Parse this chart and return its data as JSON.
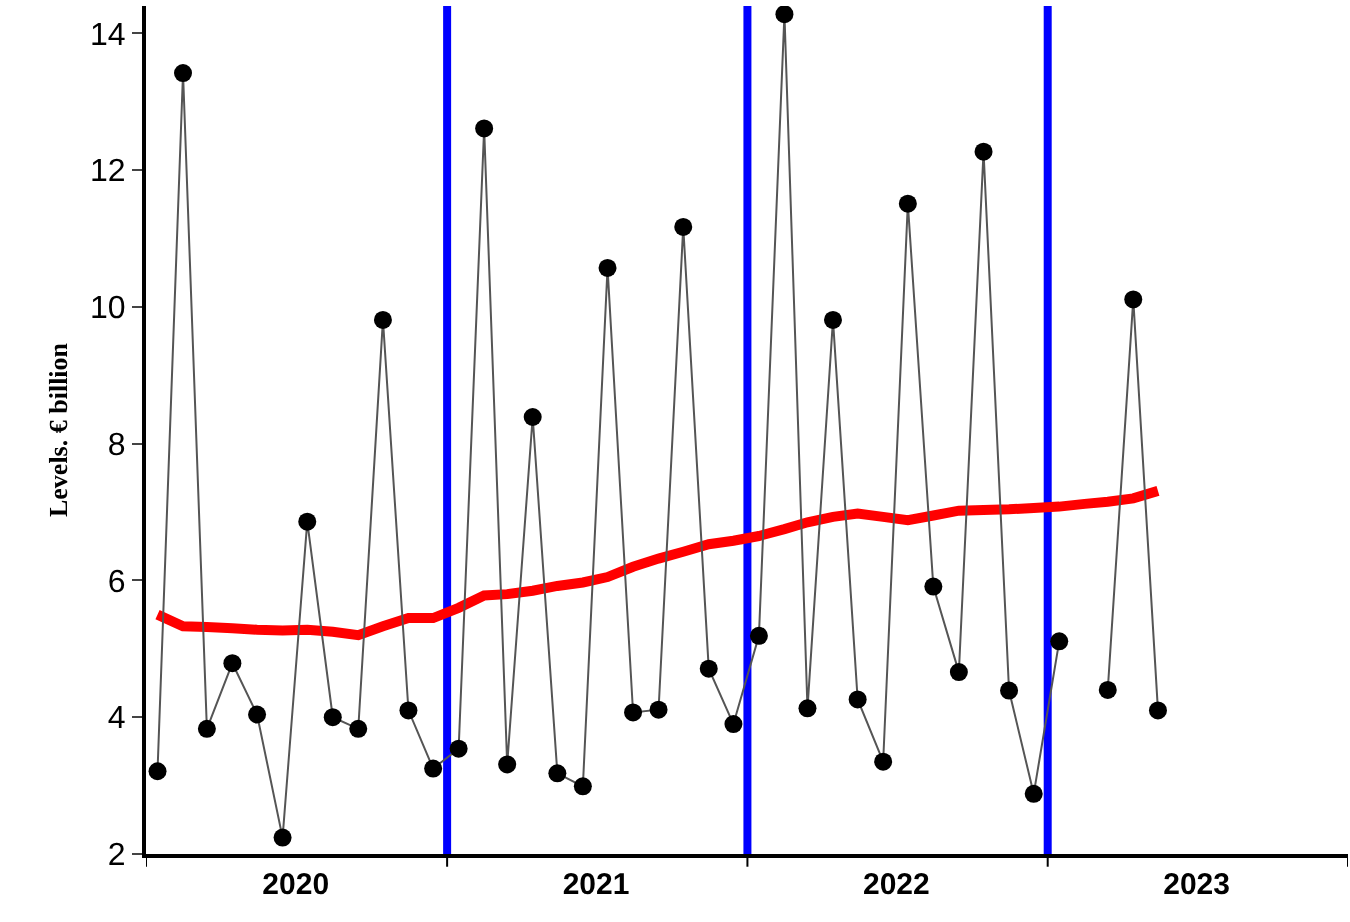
{
  "chart_data": {
    "type": "line",
    "ylabel": "Levels. € billion",
    "x": [
      "2020-01-15",
      "2020-02-15",
      "2020-03-15",
      "2020-04-15",
      "2020-05-15",
      "2020-06-15",
      "2020-07-15",
      "2020-08-15",
      "2020-09-15",
      "2020-10-15",
      "2020-11-15",
      "2020-12-15",
      "2021-01-15",
      "2021-02-15",
      "2021-03-15",
      "2021-04-15",
      "2021-05-15",
      "2021-06-15",
      "2021-07-15",
      "2021-08-15",
      "2021-09-15",
      "2021-10-15",
      "2021-11-15",
      "2021-12-15",
      "2022-01-15",
      "2022-02-15",
      "2022-03-15",
      "2022-04-15",
      "2022-05-15",
      "2022-06-15",
      "2022-07-15",
      "2022-08-15",
      "2022-09-15",
      "2022-10-15",
      "2022-11-15",
      "2022-12-15",
      "2023-01-15",
      "2023-02-15",
      "2023-03-15",
      "2023-04-15",
      "2023-05-15"
    ],
    "series": [
      {
        "color": "#000000",
        "marker": "circle",
        "values": [
          3.21,
          13.42,
          3.83,
          4.79,
          4.04,
          2.24,
          6.86,
          4.0,
          3.83,
          9.81,
          4.1,
          3.25,
          3.54,
          12.61,
          3.31,
          8.39,
          3.18,
          2.99,
          10.57,
          4.07,
          4.11,
          11.17,
          4.71,
          3.9,
          5.19,
          14.28,
          4.13,
          9.81,
          4.26,
          3.35,
          11.51,
          5.91,
          4.66,
          12.27,
          4.39,
          2.88,
          5.11,
          null,
          4.4,
          10.11,
          4.1
        ]
      },
      {
        "color": "#ff0000",
        "marker": "none",
        "values": [
          5.5,
          5.33,
          5.32,
          5.3,
          5.28,
          5.27,
          5.28,
          5.25,
          5.2,
          5.33,
          5.45,
          5.45,
          5.6,
          5.78,
          5.8,
          5.85,
          5.92,
          5.97,
          6.05,
          6.2,
          6.32,
          6.42,
          6.53,
          6.58,
          6.65,
          6.75,
          6.85,
          6.93,
          6.98,
          6.93,
          6.88,
          6.95,
          7.02,
          7.03,
          7.04,
          7.06,
          7.08,
          7.12,
          7.15,
          7.2,
          7.31
        ]
      }
    ],
    "xlim": [
      "2020-01-01",
      "2024-01-01"
    ],
    "xticks": [
      {
        "value": "2020-01-01",
        "label": null
      },
      {
        "value": "2020-07-01",
        "label": "2020"
      },
      {
        "value": "2021-01-01",
        "label": null
      },
      {
        "value": "2021-07-01",
        "label": "2021"
      },
      {
        "value": "2022-01-01",
        "label": null
      },
      {
        "value": "2022-07-01",
        "label": "2022"
      },
      {
        "value": "2023-01-01",
        "label": null
      },
      {
        "value": "2023-07-01",
        "label": "2023"
      },
      {
        "value": "2024-01-01",
        "label": null
      }
    ],
    "ylim": [
      2,
      14.4
    ],
    "yticks": [
      2,
      4,
      6,
      8,
      10,
      12,
      14
    ],
    "ref_lines": [
      {
        "axis": "x",
        "value": "2021-01-01",
        "color": "#0000ff"
      },
      {
        "axis": "x",
        "value": "2022-01-01",
        "color": "#0000ff"
      },
      {
        "axis": "x",
        "value": "2023-01-01",
        "color": "#0000ff"
      }
    ],
    "grid": false
  }
}
